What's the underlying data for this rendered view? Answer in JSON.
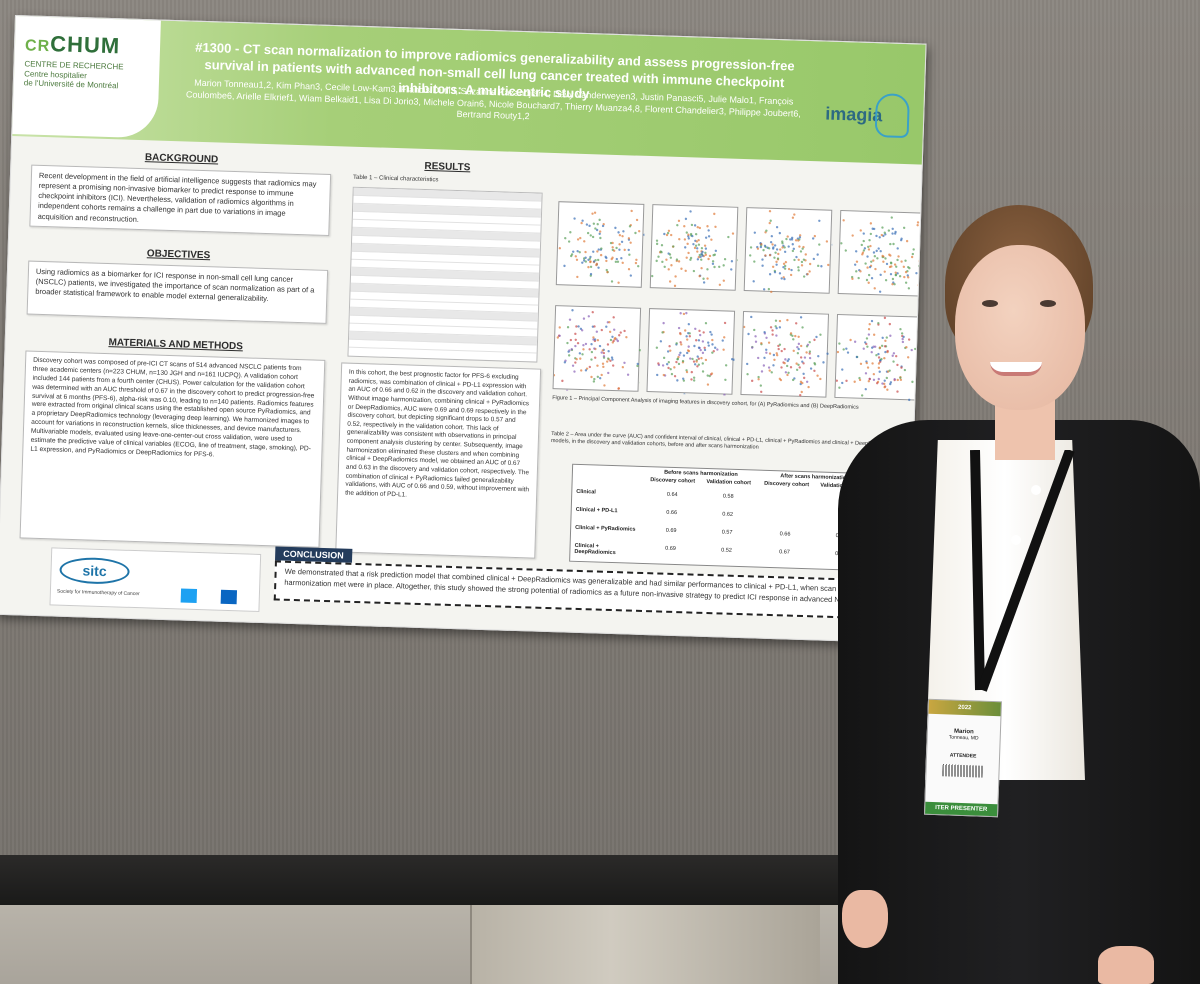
{
  "poster": {
    "number_title": "#1300 - CT scan normalization to improve radiomics generalizability and assess progression-free survival in patients with advanced non-small cell lung cancer treated with immune checkpoint inhibitors: A multicentric study",
    "authors": "Marion Tonneau1,2, Kim Phan3, Cecile Low-Kam3, Francis Dutil3, Suzanne Kazandjian4, Davy Vanderweyen3, Justin Panasci5, Julie Malo1, François Coulombe6, Arielle Elkrief1, Wiam Belkaid1, Lisa Di Jorio3, Michele Orain6, Nicole Bouchard7, Thierry Muanza4,8, Florent Chandelier3, Philippe Joubert6, Bertrand Routy1,2",
    "logo_left": {
      "prefix": "CR",
      "name": "CHUM",
      "sub1": "CENTRE DE RECHERCHE",
      "sub2": "Centre hospitalier",
      "sub3": "de l'Université de Montréal"
    },
    "logo_right": "imagia",
    "background": {
      "title": "BACKGROUND",
      "text": "Recent development in the field of artificial intelligence suggests that radiomics may represent a promising non-invasive biomarker to predict response to immune checkpoint inhibitors (ICI). Nevertheless, validation of radiomics algorithms in independent cohorts remains a challenge in part due to variations in image acquisition and reconstruction."
    },
    "objectives": {
      "title": "OBJECTIVES",
      "text": "Using radiomics as a biomarker for ICI response in non-small cell lung cancer (NSCLC) patients, we investigated the importance of scan normalization as part of a broader statistical framework to enable model external generalizability."
    },
    "methods": {
      "title": "MATERIALS AND METHODS",
      "text": "Discovery cohort was composed of pre-ICI CT scans of 514 advanced NSCLC patients from three academic centers (n=223 CHUM, n=130 JGH and n=161 IUCPQ). A validation cohort included 144 patients from a fourth center (CHUS). Power calculation for the validation cohort was determined with an AUC threshold of 0.67 in the discovery cohort to predict progression-free survival at 6 months (PFS-6), alpha-risk was 0.10, leading to n=140 patients. Radiomics features were extracted from original clinical scans using the established open source PyRadiomics, and a proprietary DeepRadiomics technology (leveraging deep learning). We harmonized images to account for variations in reconstruction kernels, slice thicknesses, and device manufacturers. Multivariable models, evaluated using leave-one-center-out cross validation, were used to estimate the predictive value of clinical variables (ECOG, line of treatment, stage, smoking), PD-L1 expression, and PyRadiomics or DeepRadiomics for PFS-6."
    },
    "results": {
      "title": "RESULTS",
      "table1_caption": "Table 1 – Clinical characteristics",
      "text": "In this cohort, the best prognostic factor for PFS-6 excluding radiomics, was combination of clinical + PD-L1 expression with an AUC of 0.66 and 0.62 in the discovery and validation cohort. Without image harmonization, combining clinical + PyRadiomics or DeepRadiomics, AUC were 0.69 and 0.69 respectively in the discovery cohort, but depicting significant drops to 0.57 and 0.52, respectively in the validation cohort. This lack of generalizability was consistent with observations in principal component analysis clustering by center. Subsequently, image harmonization eliminated these clusters and when combining clinical + DeepRadiomics model, we obtained an AUC of 0.67 and 0.63 in the discovery and validation cohort, respectively. The combination of clinical + PyRadiomics failed generalizability validations, with AUC of 0.66 and 0.59, without improvement with the addition of PD-L1.",
      "figure1_caption": "Figure 1 – Principal Component Analysis of imaging features in discovery cohort, for (A) PyRadiomics and (B) DeepRadiomics",
      "table2_caption": "Table 2 – Area under the curve (AUC) and confident interval of clinical, clinical + PD-L1, clinical + PyRadiomics and clinical + DeepRadiomics models, in the discovery and validation cohorts, before and after scans harmonization"
    },
    "table2": {
      "header_groups": [
        "Before scans harmonization",
        "After scans harmonization"
      ],
      "columns": [
        "Discovery cohort",
        "Validation cohort",
        "Discovery cohort",
        "Validation cohort"
      ],
      "rows": [
        {
          "label": "Clinical",
          "cells": [
            "0.64",
            "0.58",
            "",
            ""
          ]
        },
        {
          "label": "Clinical + PD-L1",
          "cells": [
            "0.66",
            "0.62",
            "",
            ""
          ]
        },
        {
          "label": "Clinical + PyRadiomics",
          "cells": [
            "0.69",
            "0.57",
            "0.66",
            "0.59"
          ]
        },
        {
          "label": "Clinical + DeepRadiomics",
          "cells": [
            "0.69",
            "0.52",
            "0.67",
            "0.63"
          ]
        }
      ]
    },
    "conclusion": {
      "title": "CONCLUSION",
      "text": "We demonstrated that a risk prediction model that combined clinical + DeepRadiomics was generalizable and had similar performances to clinical + PD-L1, when scan harmonization met were in place. Altogether, this study showed the strong potential of radiomics as a future non-invasive strategy to predict ICI response in advanced NSCLC."
    },
    "sitc": {
      "logo": "sitc",
      "tagline": "Society for Immunotherapy of Cancer"
    }
  },
  "badge": {
    "name": "Marion",
    "surname": "Tonneau, MD",
    "role": "ATTENDEE",
    "footer": "ITER PRESENTER"
  },
  "colors": {
    "header_green": "#98c86a",
    "board_gray": "#7e7973",
    "jacket": "#1a1a1a"
  }
}
